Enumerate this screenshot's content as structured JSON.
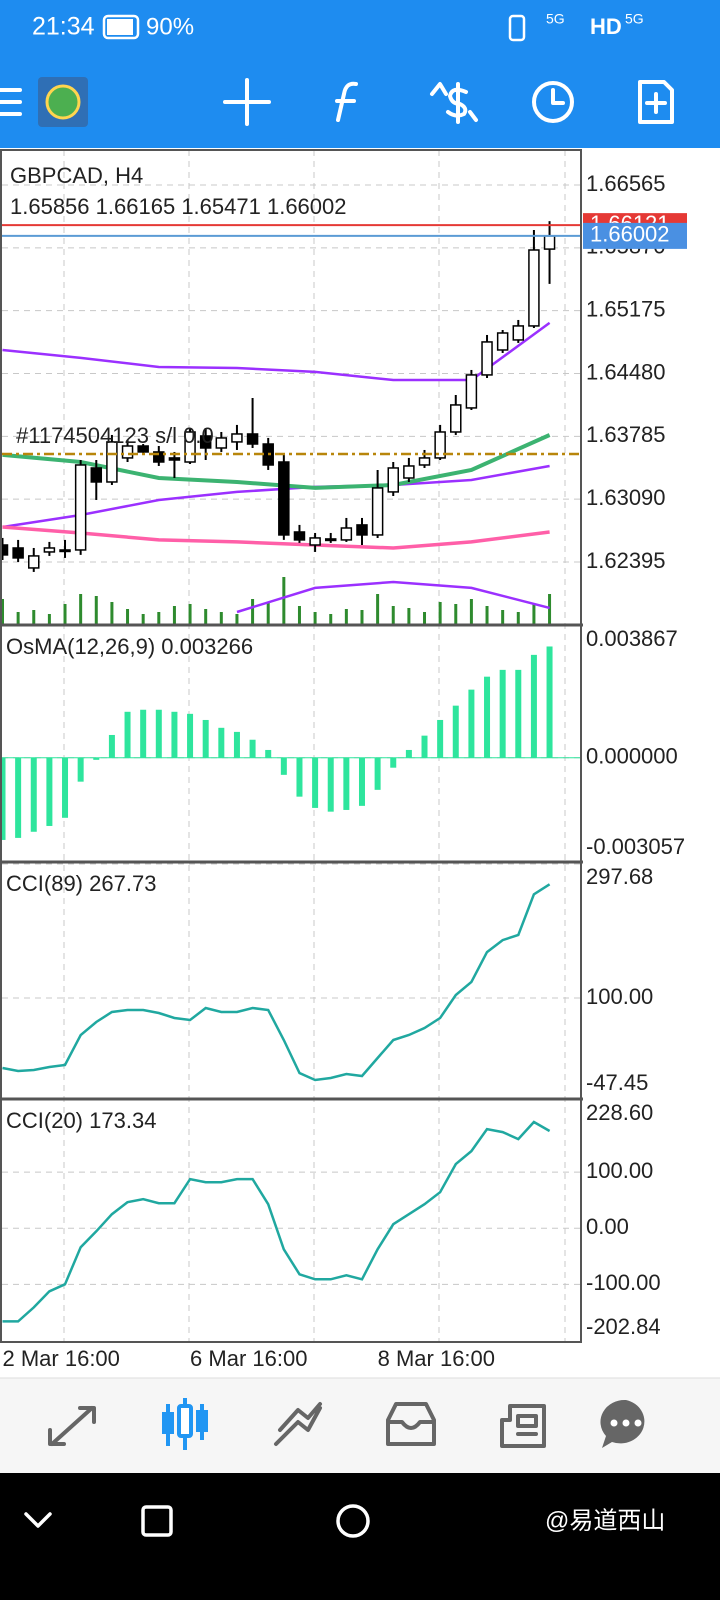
{
  "status_bar": {
    "time": "21:34",
    "battery": "90%",
    "indicators": [
      "5G",
      "HD",
      "5G"
    ]
  },
  "main": {
    "symbol": "GBPCAD, H4",
    "ylim": [
      1.61698,
      1.66952
    ],
    "yticks": [
      1.66565,
      {
        "value": 1.6587,
        "label": "1.65870"
      },
      1.65175,
      {
        "value": 1.6448,
        "label": "1.64480"
      },
      1.63785,
      {
        "value": 1.6309,
        "label": "1.63090"
      },
      1.62395
    ],
    "candles": [
      {
        "open": 1.62583,
        "high": 1.62661,
        "low": 1.62417,
        "close": 1.62473
      },
      {
        "open": 1.6255,
        "high": 1.62639,
        "low": 1.62395,
        "close": 1.6244
      },
      {
        "open": 1.62329,
        "high": 1.6255,
        "low": 1.62285,
        "close": 1.62462
      },
      {
        "open": 1.62506,
        "high": 1.62617,
        "low": 1.62462,
        "close": 1.6255
      },
      {
        "open": 1.62528,
        "high": 1.62639,
        "low": 1.6244,
        "close": 1.62517
      },
      {
        "open": 1.62528,
        "high": 1.63523,
        "low": 1.62473,
        "close": 1.63468
      },
      {
        "open": 1.63435,
        "high": 1.63523,
        "low": 1.63081,
        "close": 1.6328
      },
      {
        "open": 1.6328,
        "high": 1.638,
        "low": 1.63247,
        "close": 1.63723
      },
      {
        "open": 1.63546,
        "high": 1.63745,
        "low": 1.63501,
        "close": 1.63678
      },
      {
        "open": 1.63678,
        "high": 1.637,
        "low": 1.63579,
        "close": 1.63612
      },
      {
        "open": 1.63612,
        "high": 1.63678,
        "low": 1.63457,
        "close": 1.63501
      },
      {
        "open": 1.63546,
        "high": 1.63612,
        "low": 1.63324,
        "close": 1.63523
      },
      {
        "open": 1.63501,
        "high": 1.63877,
        "low": 1.63479,
        "close": 1.63833
      },
      {
        "open": 1.63789,
        "high": 1.63877,
        "low": 1.63523,
        "close": 1.63656
      },
      {
        "open": 1.63656,
        "high": 1.63833,
        "low": 1.63612,
        "close": 1.63767
      },
      {
        "open": 1.63723,
        "high": 1.63911,
        "low": 1.63634,
        "close": 1.63811
      },
      {
        "open": 1.63811,
        "high": 1.64209,
        "low": 1.63656,
        "close": 1.637
      },
      {
        "open": 1.637,
        "high": 1.63767,
        "low": 1.63413,
        "close": 1.63468
      },
      {
        "open": 1.63501,
        "high": 1.63579,
        "low": 1.62639,
        "close": 1.62694
      },
      {
        "open": 1.62727,
        "high": 1.62805,
        "low": 1.62606,
        "close": 1.62639
      },
      {
        "open": 1.62583,
        "high": 1.62716,
        "low": 1.62506,
        "close": 1.62661
      },
      {
        "open": 1.62639,
        "high": 1.62716,
        "low": 1.62606,
        "close": 1.6265
      },
      {
        "open": 1.62639,
        "high": 1.62882,
        "low": 1.62617,
        "close": 1.62771
      },
      {
        "open": 1.62805,
        "high": 1.62882,
        "low": 1.62583,
        "close": 1.62694
      },
      {
        "open": 1.62694,
        "high": 1.63413,
        "low": 1.62661,
        "close": 1.63214
      },
      {
        "open": 1.6317,
        "high": 1.63501,
        "low": 1.63125,
        "close": 1.63435
      },
      {
        "open": 1.63324,
        "high": 1.63546,
        "low": 1.6328,
        "close": 1.63457
      },
      {
        "open": 1.63468,
        "high": 1.63634,
        "low": 1.63435,
        "close": 1.63546
      },
      {
        "open": 1.63546,
        "high": 1.63911,
        "low": 1.63523,
        "close": 1.63833
      },
      {
        "open": 1.63833,
        "high": 1.64242,
        "low": 1.638,
        "close": 1.64132
      },
      {
        "open": 1.64099,
        "high": 1.64519,
        "low": 1.64076,
        "close": 1.64464
      },
      {
        "open": 1.64464,
        "high": 1.64906,
        "low": 1.6443,
        "close": 1.64829
      },
      {
        "open": 1.6474,
        "high": 1.64961,
        "low": 1.64707,
        "close": 1.64928
      },
      {
        "open": 1.64851,
        "high": 1.65072,
        "low": 1.64818,
        "close": 1.65006
      },
      {
        "open": 1.65006,
        "high": 1.66067,
        "low": 1.64983,
        "close": 1.65846
      },
      {
        "open": 1.65856,
        "high": 1.66165,
        "low": 1.65471,
        "close": 1.66002
      }
    ],
    "lines": [
      {
        "color": "#9b30ff",
        "width": 2.5,
        "x": [
          0,
          5,
          10,
          15,
          20,
          25,
          30,
          35
        ],
        "values": [
          1.6474,
          1.64652,
          1.64552,
          1.64541,
          1.64497,
          1.64408,
          1.64408,
          1.65039
        ]
      },
      {
        "color": "#9b30ff",
        "width": 2.5,
        "x": [
          0,
          5,
          10,
          15,
          20,
          25,
          30,
          35
        ],
        "values": [
          1.62782,
          1.62915,
          1.63081,
          1.6317,
          1.63225,
          1.63247,
          1.63302,
          1.63457
        ]
      },
      {
        "color": "#9b30ff",
        "width": 2.5,
        "x": [
          0,
          5,
          10,
          15,
          20,
          25,
          30,
          35
        ],
        "values": [
          null,
          null,
          null,
          1.61842,
          1.62108,
          1.62174,
          1.62108,
          1.61887
        ]
      },
      {
        "color": "#ff5fa8",
        "width": 3.5,
        "x": [
          0,
          5,
          10,
          15,
          20,
          25,
          30,
          35
        ],
        "values": [
          1.62782,
          1.62716,
          1.62639,
          1.62617,
          1.62583,
          1.6255,
          1.62617,
          1.62727
        ]
      },
      {
        "color": "#3cb371",
        "width": 4,
        "x": [
          0,
          5,
          10,
          15,
          20,
          25,
          30,
          35
        ],
        "values": [
          1.63579,
          1.63501,
          1.63324,
          1.6328,
          1.63214,
          1.63247,
          1.63413,
          1.638
        ]
      }
    ],
    "ask": 1.66121,
    "order": {
      "label": "#1174504123 s/l 0.0",
      "price": 1.6359
    },
    "volume": [
      25,
      12,
      14,
      10,
      20,
      30,
      28,
      22,
      15,
      10,
      12,
      18,
      20,
      15,
      12,
      10,
      25,
      22,
      47,
      18,
      12,
      10,
      15,
      14,
      30,
      18,
      16,
      12,
      22,
      20,
      25,
      18,
      14,
      12,
      20,
      30
    ]
  },
  "osma": {
    "title": "OsMA(12,26,9)",
    "color": "#2ee59d",
    "ylim": [
      -0.003057,
      0.003867
    ],
    "yticks": [
      0.003867,
      {
        "value": 0,
        "label": "0.000000"
      },
      -0.003057
    ],
    "values": [
      -0.00241,
      -0.00235,
      -0.00217,
      -0.002,
      -0.00176,
      -0.0007,
      -6e-05,
      0.00067,
      0.00135,
      0.00141,
      0.00141,
      0.00135,
      0.00129,
      0.00111,
      0.00088,
      0.00076,
      0.00053,
      0.00023,
      -0.0005,
      -0.00114,
      -0.00147,
      -0.00158,
      -0.00153,
      -0.00141,
      -0.00094,
      -0.00029,
      0.00023,
      0.00065,
      0.00111,
      0.00153,
      0.002,
      0.00238,
      0.00258,
      0.00258,
      0.00302,
      0.003266
    ]
  },
  "cci89": {
    "title": "CCI(89)",
    "color": "#20a8a0",
    "ylim": [
      -47.45,
      297.68
    ],
    "yticks": [
      297.68,
      {
        "value": 100,
        "label": "100.00"
      },
      -47.45
    ],
    "values": [
      -3.2,
      -7.7,
      -6.2,
      -1.8,
      1.2,
      45.4,
      64.6,
      79.4,
      82.3,
      82.3,
      77.9,
      70.5,
      67.6,
      85.3,
      79.4,
      79.4,
      85.3,
      82.3,
      38.1,
      -10.6,
      -20.9,
      -18.0,
      -12.1,
      -15.0,
      11.5,
      38.1,
      45.4,
      55.8,
      70.5,
      104.4,
      123.6,
      167.8,
      185.5,
      192.9,
      253.0,
      267.73
    ]
  },
  "cci20": {
    "title": "CCI(20)",
    "color": "#20a8a0",
    "ylim": [
      -202.84,
      228.6
    ],
    "yticks": [
      {
        "value": 228.6,
        "label": "228.60"
      },
      {
        "value": 100,
        "label": "100.00"
      },
      {
        "value": 0,
        "label": "0.00"
      },
      {
        "value": -100,
        "label": "-100.00"
      },
      -202.84
    ],
    "values": [
      -166.1,
      -166.1,
      -141.1,
      -112.5,
      -100.0,
      -33.9,
      -5.4,
      25.0,
      46.4,
      51.8,
      44.6,
      44.6,
      87.5,
      82.1,
      82.1,
      87.5,
      87.5,
      42.9,
      -37.5,
      -82.1,
      -91.1,
      -91.1,
      -83.9,
      -91.1,
      -37.5,
      7.1,
      25.0,
      42.9,
      64.3,
      114.3,
      137.5,
      176.8,
      171.4,
      158.9,
      189.3,
      173.34
    ]
  },
  "x_axis": {
    "categories": [
      "2 Mar 16:00",
      null,
      null,
      null,
      null,
      null,
      null,
      null,
      null,
      null,
      null,
      null,
      "6 Mar 16:00",
      null,
      null,
      null,
      null,
      null,
      null,
      null,
      null,
      null,
      null,
      null,
      "8 Mar 16:00",
      null,
      null,
      null,
      null,
      null,
      null,
      null,
      null,
      null,
      null,
      null
    ]
  },
  "watermark": "@易道西山"
}
